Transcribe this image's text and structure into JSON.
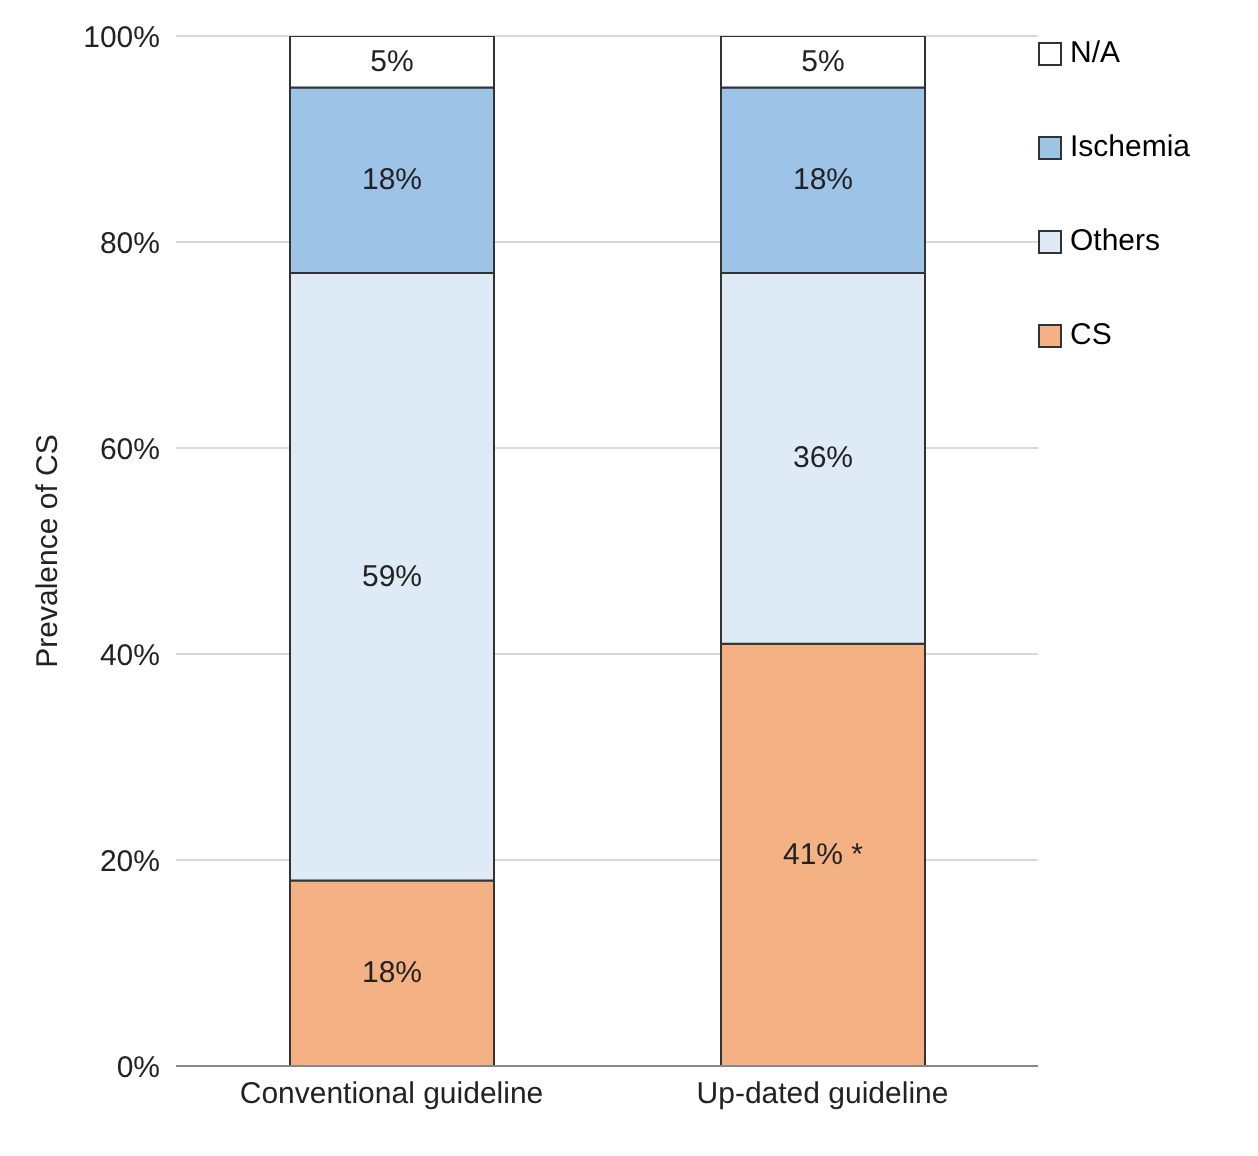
{
  "chart_data": {
    "type": "bar",
    "stacked": true,
    "ylabel": "Prevalence of CS",
    "categories": [
      "Conventional guideline",
      "Up-dated guideline"
    ],
    "series": [
      {
        "name": "CS",
        "color": "#f4b183",
        "values": [
          18,
          41
        ],
        "value_labels": [
          "18%",
          "41% *"
        ]
      },
      {
        "name": "Others",
        "color": "#deebf7",
        "values": [
          59,
          36
        ],
        "value_labels": [
          "59%",
          "36%"
        ]
      },
      {
        "name": "Ischemia",
        "color": "#9dc3e6",
        "values": [
          18,
          18
        ],
        "value_labels": [
          "18%",
          "18%"
        ]
      },
      {
        "name": "N/A",
        "color": "#ffffff",
        "values": [
          5,
          5
        ],
        "value_labels": [
          "5%",
          "5%"
        ]
      }
    ],
    "ylim": [
      0,
      100
    ],
    "yticks": [
      {
        "value": 0,
        "label": "0%"
      },
      {
        "value": 20,
        "label": "20%"
      },
      {
        "value": 40,
        "label": "40%"
      },
      {
        "value": 60,
        "label": "60%"
      },
      {
        "value": 80,
        "label": "80%"
      },
      {
        "value": 100,
        "label": "100%"
      }
    ],
    "grid": "y",
    "legend": "top right"
  }
}
